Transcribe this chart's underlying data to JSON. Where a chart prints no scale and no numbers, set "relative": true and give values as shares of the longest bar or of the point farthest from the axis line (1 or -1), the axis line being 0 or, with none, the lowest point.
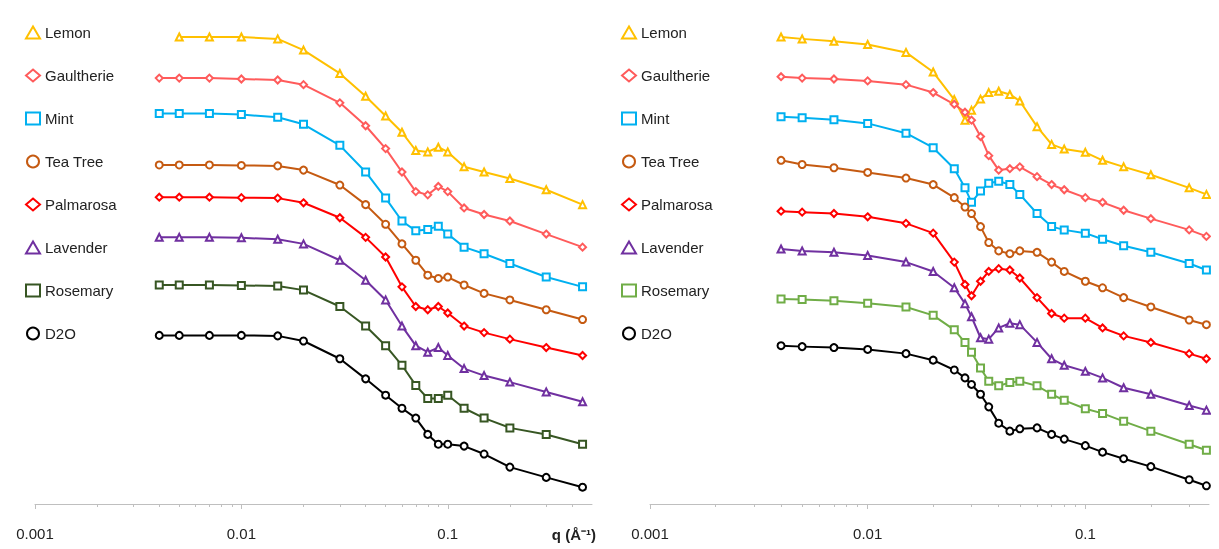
{
  "chart_data": [
    {
      "type": "line",
      "xlabel": "q (Å⁻¹)",
      "relative": true,
      "log": "x",
      "xlim": [
        0.001,
        0.5
      ],
      "xticks": [
        0.001,
        0.01,
        0.1
      ],
      "grid": false,
      "legend": "top left",
      "tick_labels": "x",
      "x": [
        0.004,
        0.005,
        0.007,
        0.01,
        0.015,
        0.02,
        0.03,
        0.04,
        0.05,
        0.06,
        0.07,
        0.08,
        0.09,
        0.1,
        0.12,
        0.15,
        0.2,
        0.3,
        0.45
      ],
      "series": [
        {
          "name": "Lemon",
          "color": "#ffc000",
          "marker": "triangle",
          "x": [
            0.005,
            0.007,
            0.01,
            0.015,
            0.02,
            0.03,
            0.04,
            0.05,
            0.06,
            0.07,
            0.08,
            0.09,
            0.1,
            0.12,
            0.15,
            0.2,
            0.3,
            0.45
          ],
          "values": [
            1.0,
            1.0,
            1.0,
            0.996,
            0.972,
            0.922,
            0.873,
            0.831,
            0.796,
            0.757,
            0.754,
            0.764,
            0.754,
            0.722,
            0.711,
            0.697,
            0.673,
            0.641
          ]
        },
        {
          "name": "Gaultherie",
          "color": "#ff5b5b",
          "marker": "diamond",
          "values": [
            0.912,
            0.912,
            0.912,
            0.91,
            0.908,
            0.898,
            0.859,
            0.81,
            0.761,
            0.711,
            0.669,
            0.662,
            0.68,
            0.669,
            0.634,
            0.62,
            0.606,
            0.578,
            0.55
          ]
        },
        {
          "name": "Mint",
          "color": "#00b0f0",
          "marker": "square",
          "values": [
            0.836,
            0.836,
            0.836,
            0.834,
            0.828,
            0.813,
            0.768,
            0.711,
            0.655,
            0.606,
            0.585,
            0.588,
            0.595,
            0.578,
            0.55,
            0.536,
            0.515,
            0.486,
            0.465
          ]
        },
        {
          "name": "Tea Tree",
          "color": "#c55a11",
          "marker": "circle",
          "values": [
            0.726,
            0.726,
            0.726,
            0.725,
            0.724,
            0.715,
            0.683,
            0.641,
            0.599,
            0.557,
            0.522,
            0.49,
            0.483,
            0.486,
            0.469,
            0.451,
            0.437,
            0.416,
            0.395
          ]
        },
        {
          "name": "Palmarosa",
          "color": "#ff0000",
          "marker": "diamond",
          "values": [
            0.657,
            0.657,
            0.657,
            0.656,
            0.655,
            0.645,
            0.613,
            0.571,
            0.529,
            0.465,
            0.423,
            0.416,
            0.423,
            0.409,
            0.381,
            0.367,
            0.353,
            0.335,
            0.318
          ]
        },
        {
          "name": "Lavender",
          "color": "#7030a0",
          "marker": "triangle",
          "values": [
            0.571,
            0.571,
            0.571,
            0.57,
            0.567,
            0.557,
            0.522,
            0.479,
            0.437,
            0.381,
            0.339,
            0.325,
            0.335,
            0.318,
            0.29,
            0.275,
            0.261,
            0.24,
            0.219
          ]
        },
        {
          "name": "Rosemary",
          "color": "#375623",
          "marker": "square",
          "values": [
            0.469,
            0.469,
            0.469,
            0.468,
            0.467,
            0.458,
            0.423,
            0.381,
            0.339,
            0.297,
            0.254,
            0.226,
            0.226,
            0.233,
            0.205,
            0.184,
            0.163,
            0.149,
            0.128
          ]
        },
        {
          "name": "D2O",
          "color": "#000000",
          "marker": "circle",
          "values": [
            0.361,
            0.361,
            0.361,
            0.361,
            0.36,
            0.349,
            0.311,
            0.268,
            0.233,
            0.205,
            0.184,
            0.149,
            0.128,
            0.128,
            0.124,
            0.107,
            0.079,
            0.057,
            0.036
          ]
        }
      ]
    },
    {
      "type": "line",
      "relative": true,
      "log": "x",
      "xlim": [
        0.001,
        0.37
      ],
      "xticks": [
        0.001,
        0.01,
        0.1
      ],
      "grid": false,
      "legend": "top left",
      "tick_labels": "x",
      "x": [
        0.004,
        0.005,
        0.007,
        0.01,
        0.015,
        0.02,
        0.025,
        0.028,
        0.03,
        0.033,
        0.036,
        0.04,
        0.045,
        0.05,
        0.06,
        0.07,
        0.08,
        0.1,
        0.12,
        0.15,
        0.2,
        0.3,
        0.36
      ],
      "series": [
        {
          "name": "Lemon",
          "color": "#ffc000",
          "marker": "triangle",
          "values": [
            1.0,
            0.996,
            0.991,
            0.984,
            0.967,
            0.925,
            0.866,
            0.822,
            0.843,
            0.867,
            0.881,
            0.884,
            0.877,
            0.863,
            0.808,
            0.77,
            0.76,
            0.753,
            0.736,
            0.722,
            0.705,
            0.677,
            0.663
          ]
        },
        {
          "name": "Gaultherie",
          "color": "#ff5b5b",
          "marker": "diamond",
          "values": [
            0.915,
            0.912,
            0.91,
            0.906,
            0.898,
            0.881,
            0.856,
            0.839,
            0.822,
            0.787,
            0.746,
            0.715,
            0.718,
            0.722,
            0.701,
            0.684,
            0.673,
            0.656,
            0.646,
            0.629,
            0.611,
            0.587,
            0.573
          ]
        },
        {
          "name": "Mint",
          "color": "#00b0f0",
          "marker": "square",
          "values": [
            0.829,
            0.827,
            0.823,
            0.815,
            0.794,
            0.763,
            0.718,
            0.677,
            0.646,
            0.67,
            0.687,
            0.691,
            0.684,
            0.663,
            0.622,
            0.594,
            0.587,
            0.58,
            0.567,
            0.553,
            0.539,
            0.515,
            0.501
          ]
        },
        {
          "name": "Tea Tree",
          "color": "#c55a11",
          "marker": "circle",
          "values": [
            0.736,
            0.727,
            0.72,
            0.71,
            0.698,
            0.684,
            0.656,
            0.636,
            0.622,
            0.594,
            0.56,
            0.542,
            0.536,
            0.542,
            0.539,
            0.518,
            0.498,
            0.477,
            0.463,
            0.442,
            0.422,
            0.394,
            0.384
          ]
        },
        {
          "name": "Palmarosa",
          "color": "#ff0000",
          "marker": "diamond",
          "values": [
            0.627,
            0.625,
            0.622,
            0.615,
            0.601,
            0.58,
            0.518,
            0.47,
            0.446,
            0.477,
            0.498,
            0.504,
            0.501,
            0.484,
            0.442,
            0.408,
            0.398,
            0.398,
            0.377,
            0.36,
            0.346,
            0.322,
            0.311
          ]
        },
        {
          "name": "Lavender",
          "color": "#7030a0",
          "marker": "triangle",
          "values": [
            0.546,
            0.542,
            0.539,
            0.532,
            0.518,
            0.498,
            0.463,
            0.429,
            0.401,
            0.356,
            0.353,
            0.377,
            0.387,
            0.384,
            0.346,
            0.311,
            0.297,
            0.284,
            0.27,
            0.249,
            0.235,
            0.211,
            0.201
          ]
        },
        {
          "name": "Rosemary",
          "color": "#70ad47",
          "marker": "square",
          "values": [
            0.439,
            0.438,
            0.435,
            0.43,
            0.422,
            0.404,
            0.373,
            0.346,
            0.325,
            0.291,
            0.263,
            0.253,
            0.26,
            0.263,
            0.253,
            0.235,
            0.222,
            0.204,
            0.194,
            0.177,
            0.156,
            0.128,
            0.115
          ]
        },
        {
          "name": "D2O",
          "color": "#000000",
          "marker": "circle",
          "values": [
            0.339,
            0.337,
            0.335,
            0.331,
            0.322,
            0.308,
            0.287,
            0.27,
            0.256,
            0.235,
            0.208,
            0.173,
            0.156,
            0.161,
            0.163,
            0.149,
            0.139,
            0.125,
            0.111,
            0.097,
            0.08,
            0.052,
            0.039
          ]
        }
      ]
    }
  ]
}
